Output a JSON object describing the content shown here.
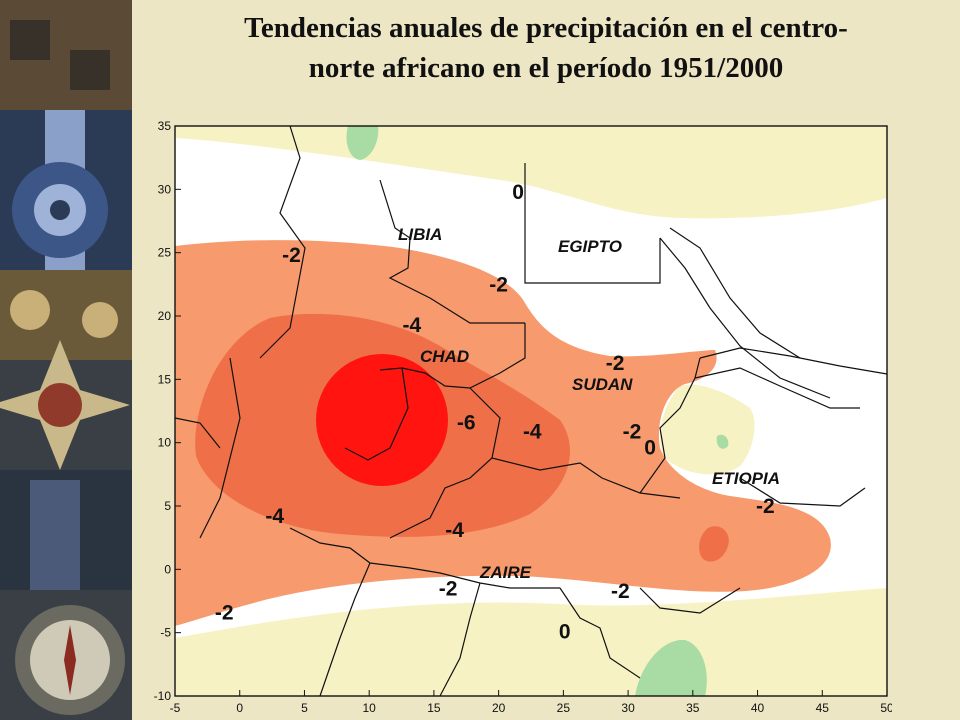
{
  "title": {
    "line1": "Tendencias anuales de precipitación en el centro-",
    "line2": "norte africano en el período 1951/2000"
  },
  "colors": {
    "background": "#ece6c4",
    "positive_zone": "#f7f2c4",
    "positive_core": "#a8dca4",
    "level_minus2": "#f79a6e",
    "level_minus4": "#ef7048",
    "level_minus6": "#ff1410",
    "boundaries": "#111111"
  },
  "map": {
    "x_axis": {
      "min": -5,
      "max": 50,
      "ticks": [
        "-5",
        "0",
        "5",
        "10",
        "15",
        "20",
        "25",
        "30",
        "35",
        "40",
        "45",
        "50"
      ]
    },
    "y_axis": {
      "min": -10,
      "max": 35,
      "ticks": [
        "35",
        "30",
        "25",
        "20",
        "15",
        "10",
        "5",
        "0",
        "-5",
        "-10"
      ]
    },
    "regions": {
      "libia": "LIBIA",
      "egipto": "EGIPTO",
      "chad": "CHAD",
      "sudan": "SUDAN",
      "etiopia": "ETIOPIA",
      "zaire": "ZAIRE"
    },
    "contour_labels": [
      {
        "id": "c1",
        "text": "0",
        "lon": 21.5,
        "lat": 29.8
      },
      {
        "id": "c2",
        "text": "-2",
        "lon": 4.0,
        "lat": 24.8
      },
      {
        "id": "c3",
        "text": "-2",
        "lon": 20.0,
        "lat": 22.5
      },
      {
        "id": "c4",
        "text": "-4",
        "lon": 13.3,
        "lat": 19.3
      },
      {
        "id": "c5",
        "text": "-2",
        "lon": 29.0,
        "lat": 16.3
      },
      {
        "id": "c6",
        "text": "-6",
        "lon": 17.5,
        "lat": 11.6
      },
      {
        "id": "c7",
        "text": "-4",
        "lon": 22.6,
        "lat": 10.9
      },
      {
        "id": "c8",
        "text": "-2",
        "lon": 30.3,
        "lat": 10.9
      },
      {
        "id": "c9",
        "text": "0",
        "lon": 31.7,
        "lat": 9.6
      },
      {
        "id": "c10",
        "text": "-4",
        "lon": 2.7,
        "lat": 4.2
      },
      {
        "id": "c11",
        "text": "-4",
        "lon": 16.6,
        "lat": 3.1
      },
      {
        "id": "c12",
        "text": "-2",
        "lon": 40.6,
        "lat": 5.0
      },
      {
        "id": "c13",
        "text": "-2",
        "lon": 16.1,
        "lat": -1.5
      },
      {
        "id": "c14",
        "text": "-2",
        "lon": 29.4,
        "lat": -1.7
      },
      {
        "id": "c15",
        "text": "-2",
        "lon": -1.2,
        "lat": -3.4
      },
      {
        "id": "c16",
        "text": "0",
        "lon": 25.1,
        "lat": -4.9
      }
    ]
  }
}
